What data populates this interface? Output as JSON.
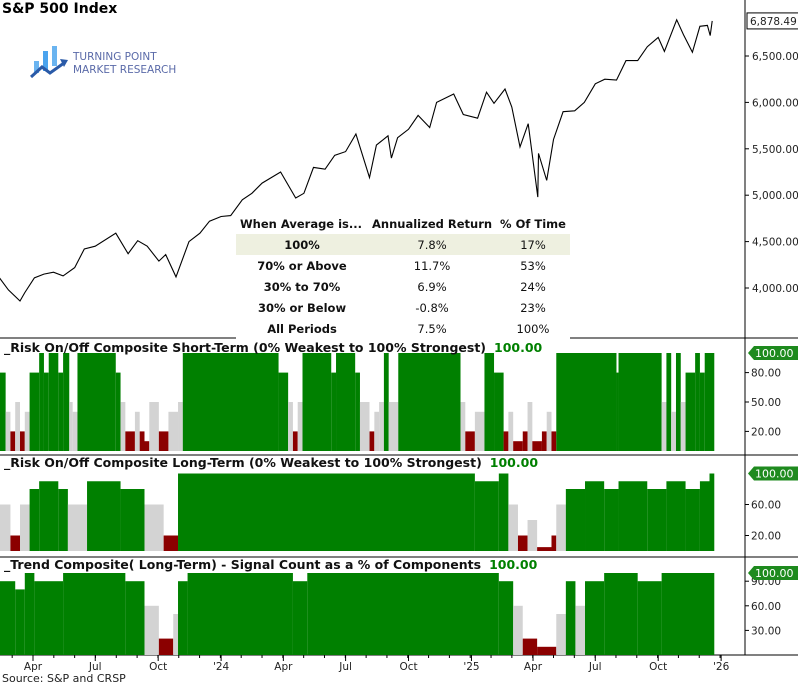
{
  "title": "S&P 500 Index",
  "logo": {
    "line1": "TURNING POINT",
    "line2": "MARKET RESEARCH"
  },
  "source": "Source: S&P and CRSP",
  "colors": {
    "high": "#008000",
    "mid": "#d3d3d3",
    "low": "#8b0000",
    "price": "#000000",
    "badge": "#1e8a1e",
    "table_highlight": "#eef0e0"
  },
  "table": {
    "headers": [
      "When Average is...",
      "Annualized Return",
      "% Of Time"
    ],
    "rows": [
      [
        "100%",
        "7.8%",
        "17%"
      ],
      [
        "70% or Above",
        "11.7%",
        "53%"
      ],
      [
        "30% to 70%",
        "6.9%",
        "24%"
      ],
      [
        "30% or Below",
        "-0.8%",
        "23%"
      ],
      [
        "All Periods",
        "7.5%",
        "100%"
      ]
    ]
  },
  "chart_data": [
    {
      "type": "line",
      "title": "S&P 500 Index",
      "last_value_label": "6,878.49",
      "ylim": [
        3700,
        7000
      ],
      "yticks": [
        "4,000.00",
        "4,500.00",
        "5,000.00",
        "5,500.00",
        "6,000.00",
        "6,500.00"
      ],
      "ytick_values": [
        4000,
        4500,
        5000,
        5500,
        6000,
        6500
      ],
      "points": [
        [
          "2023-02-10",
          4120
        ],
        [
          "2023-02-24",
          3980
        ],
        [
          "2023-03-13",
          3860
        ],
        [
          "2023-03-20",
          3950
        ],
        [
          "2023-04-03",
          4110
        ],
        [
          "2023-04-17",
          4150
        ],
        [
          "2023-05-01",
          4170
        ],
        [
          "2023-05-15",
          4130
        ],
        [
          "2023-06-01",
          4220
        ],
        [
          "2023-06-15",
          4420
        ],
        [
          "2023-07-01",
          4450
        ],
        [
          "2023-07-31",
          4590
        ],
        [
          "2023-08-18",
          4370
        ],
        [
          "2023-09-01",
          4510
        ],
        [
          "2023-09-15",
          4450
        ],
        [
          "2023-10-02",
          4290
        ],
        [
          "2023-10-12",
          4360
        ],
        [
          "2023-10-27",
          4120
        ],
        [
          "2023-11-15",
          4500
        ],
        [
          "2023-12-01",
          4590
        ],
        [
          "2023-12-15",
          4720
        ],
        [
          "2024-01-01",
          4770
        ],
        [
          "2024-01-15",
          4780
        ],
        [
          "2024-02-01",
          4950
        ],
        [
          "2024-02-15",
          5020
        ],
        [
          "2024-03-01",
          5130
        ],
        [
          "2024-03-28",
          5250
        ],
        [
          "2024-04-19",
          4970
        ],
        [
          "2024-05-01",
          5020
        ],
        [
          "2024-05-15",
          5300
        ],
        [
          "2024-06-01",
          5280
        ],
        [
          "2024-06-15",
          5430
        ],
        [
          "2024-07-01",
          5470
        ],
        [
          "2024-07-16",
          5660
        ],
        [
          "2024-08-05",
          5190
        ],
        [
          "2024-08-15",
          5540
        ],
        [
          "2024-09-01",
          5640
        ],
        [
          "2024-09-06",
          5400
        ],
        [
          "2024-09-15",
          5620
        ],
        [
          "2024-10-01",
          5710
        ],
        [
          "2024-10-15",
          5860
        ],
        [
          "2024-11-01",
          5730
        ],
        [
          "2024-11-11",
          6000
        ],
        [
          "2024-12-06",
          6090
        ],
        [
          "2024-12-20",
          5870
        ],
        [
          "2025-01-10",
          5830
        ],
        [
          "2025-01-23",
          6110
        ],
        [
          "2025-02-03",
          5990
        ],
        [
          "2025-02-19",
          6144
        ],
        [
          "2025-03-01",
          5950
        ],
        [
          "2025-03-13",
          5520
        ],
        [
          "2025-03-25",
          5770
        ],
        [
          "2025-04-08",
          4980
        ],
        [
          "2025-04-09",
          5450
        ],
        [
          "2025-04-21",
          5160
        ],
        [
          "2025-05-01",
          5600
        ],
        [
          "2025-05-15",
          5900
        ],
        [
          "2025-06-01",
          5910
        ],
        [
          "2025-06-15",
          6000
        ],
        [
          "2025-07-01",
          6200
        ],
        [
          "2025-07-15",
          6250
        ],
        [
          "2025-08-01",
          6240
        ],
        [
          "2025-08-15",
          6450
        ],
        [
          "2025-09-01",
          6450
        ],
        [
          "2025-09-15",
          6600
        ],
        [
          "2025-10-01",
          6700
        ],
        [
          "2025-10-10",
          6550
        ],
        [
          "2025-10-28",
          6890
        ],
        [
          "2025-11-07",
          6730
        ],
        [
          "2025-11-20",
          6540
        ],
        [
          "2025-12-01",
          6820
        ],
        [
          "2025-12-12",
          6830
        ],
        [
          "2025-12-16",
          6720
        ],
        [
          "2025-12-19",
          6878
        ]
      ]
    },
    {
      "type": "bar",
      "title": "_Risk On/Off Composite Short-Term (0% Weakest to 100% Strongest)",
      "last_value_label": "100.00",
      "ylim": [
        0,
        100
      ],
      "yticks": [
        "20.00",
        "50.00",
        "80.00"
      ],
      "ytick_values": [
        20,
        50,
        80
      ],
      "steps": [
        [
          "2023-02-06",
          80
        ],
        [
          "2023-02-20",
          40
        ],
        [
          "2023-02-27",
          20
        ],
        [
          "2023-03-06",
          50
        ],
        [
          "2023-03-13",
          20
        ],
        [
          "2023-03-20",
          40
        ],
        [
          "2023-03-27",
          80
        ],
        [
          "2023-04-10",
          100
        ],
        [
          "2023-04-17",
          80
        ],
        [
          "2023-04-24",
          100
        ],
        [
          "2023-05-08",
          80
        ],
        [
          "2023-05-15",
          100
        ],
        [
          "2023-05-24",
          50
        ],
        [
          "2023-05-29",
          40
        ],
        [
          "2023-06-05",
          100
        ],
        [
          "2023-07-31",
          80
        ],
        [
          "2023-08-07",
          50
        ],
        [
          "2023-08-14",
          20
        ],
        [
          "2023-08-28",
          40
        ],
        [
          "2023-09-04",
          20
        ],
        [
          "2023-09-11",
          10
        ],
        [
          "2023-09-18",
          50
        ],
        [
          "2023-10-02",
          20
        ],
        [
          "2023-10-16",
          40
        ],
        [
          "2023-10-30",
          50
        ],
        [
          "2023-11-06",
          100
        ],
        [
          "2024-03-25",
          80
        ],
        [
          "2024-04-08",
          50
        ],
        [
          "2024-04-15",
          20
        ],
        [
          "2024-04-22",
          50
        ],
        [
          "2024-04-29",
          100
        ],
        [
          "2024-06-10",
          80
        ],
        [
          "2024-06-17",
          100
        ],
        [
          "2024-07-15",
          80
        ],
        [
          "2024-07-22",
          50
        ],
        [
          "2024-08-05",
          20
        ],
        [
          "2024-08-12",
          40
        ],
        [
          "2024-08-19",
          50
        ],
        [
          "2024-08-26",
          100
        ],
        [
          "2024-09-02",
          50
        ],
        [
          "2024-09-16",
          100
        ],
        [
          "2024-12-16",
          50
        ],
        [
          "2024-12-23",
          20
        ],
        [
          "2025-01-06",
          40
        ],
        [
          "2025-01-20",
          100
        ],
        [
          "2025-02-03",
          80
        ],
        [
          "2025-02-17",
          20
        ],
        [
          "2025-02-24",
          40
        ],
        [
          "2025-03-03",
          10
        ],
        [
          "2025-03-17",
          20
        ],
        [
          "2025-03-24",
          50
        ],
        [
          "2025-03-31",
          10
        ],
        [
          "2025-04-14",
          20
        ],
        [
          "2025-04-21",
          40
        ],
        [
          "2025-04-28",
          20
        ],
        [
          "2025-05-05",
          100
        ],
        [
          "2025-08-01",
          80
        ],
        [
          "2025-08-04",
          100
        ],
        [
          "2025-10-06",
          50
        ],
        [
          "2025-10-13",
          100
        ],
        [
          "2025-10-20",
          40
        ],
        [
          "2025-10-27",
          100
        ],
        [
          "2025-11-03",
          50
        ],
        [
          "2025-11-10",
          80
        ],
        [
          "2025-11-24",
          100
        ],
        [
          "2025-12-01",
          80
        ],
        [
          "2025-12-08",
          100
        ],
        [
          "2025-12-22",
          100
        ]
      ]
    },
    {
      "type": "bar",
      "title": "_Risk On/Off Composite Long-Term (0% Weakest to 100% Strongest)",
      "last_value_label": "100.00",
      "ylim": [
        0,
        100
      ],
      "yticks": [
        "20.00",
        "60.00"
      ],
      "ytick_values": [
        20,
        60
      ],
      "steps": [
        [
          "2023-02-06",
          60
        ],
        [
          "2023-02-27",
          20
        ],
        [
          "2023-03-13",
          60
        ],
        [
          "2023-03-27",
          80
        ],
        [
          "2023-04-10",
          90
        ],
        [
          "2023-05-08",
          80
        ],
        [
          "2023-05-22",
          60
        ],
        [
          "2023-06-19",
          90
        ],
        [
          "2023-08-07",
          80
        ],
        [
          "2023-09-11",
          60
        ],
        [
          "2023-10-09",
          20
        ],
        [
          "2023-10-30",
          100
        ],
        [
          "2025-01-06",
          90
        ],
        [
          "2025-02-10",
          100
        ],
        [
          "2025-02-24",
          60
        ],
        [
          "2025-03-10",
          20
        ],
        [
          "2025-03-24",
          40
        ],
        [
          "2025-04-07",
          5
        ],
        [
          "2025-04-28",
          20
        ],
        [
          "2025-05-05",
          60
        ],
        [
          "2025-05-19",
          80
        ],
        [
          "2025-06-16",
          90
        ],
        [
          "2025-07-14",
          80
        ],
        [
          "2025-08-04",
          90
        ],
        [
          "2025-09-15",
          80
        ],
        [
          "2025-10-13",
          90
        ],
        [
          "2025-11-10",
          80
        ],
        [
          "2025-12-01",
          90
        ],
        [
          "2025-12-15",
          100
        ],
        [
          "2025-12-22",
          100
        ]
      ]
    },
    {
      "type": "bar",
      "title": "_Trend Composite( Long-Term) - Signal Count as a % of Components",
      "last_value_label": "100.00",
      "ylim": [
        0,
        100
      ],
      "yticks": [
        "30.00",
        "60.00",
        "90.00"
      ],
      "ytick_values": [
        30,
        60,
        90
      ],
      "steps": [
        [
          "2023-02-06",
          90
        ],
        [
          "2023-03-06",
          80
        ],
        [
          "2023-03-20",
          100
        ],
        [
          "2023-04-03",
          90
        ],
        [
          "2023-05-15",
          100
        ],
        [
          "2023-08-14",
          90
        ],
        [
          "2023-09-11",
          60
        ],
        [
          "2023-10-02",
          20
        ],
        [
          "2023-10-23",
          50
        ],
        [
          "2023-10-30",
          90
        ],
        [
          "2023-11-13",
          100
        ],
        [
          "2024-04-15",
          90
        ],
        [
          "2024-05-06",
          100
        ],
        [
          "2025-02-10",
          90
        ],
        [
          "2025-03-03",
          60
        ],
        [
          "2025-03-17",
          20
        ],
        [
          "2025-04-07",
          10
        ],
        [
          "2025-05-05",
          50
        ],
        [
          "2025-05-19",
          90
        ],
        [
          "2025-06-02",
          60
        ],
        [
          "2025-06-16",
          90
        ],
        [
          "2025-07-14",
          100
        ],
        [
          "2025-09-01",
          90
        ],
        [
          "2025-10-06",
          100
        ],
        [
          "2025-12-22",
          100
        ]
      ]
    }
  ],
  "xaxis": {
    "ticks": [
      [
        "2023-04-01",
        "Apr"
      ],
      [
        "2023-07-01",
        "Jul"
      ],
      [
        "2023-10-01",
        "Oct"
      ],
      [
        "2024-01-01",
        "'24"
      ],
      [
        "2024-04-01",
        "Apr"
      ],
      [
        "2024-07-01",
        "Jul"
      ],
      [
        "2024-10-01",
        "Oct"
      ],
      [
        "2025-01-01",
        "'25"
      ],
      [
        "2025-04-01",
        "Apr"
      ],
      [
        "2025-07-01",
        "Jul"
      ],
      [
        "2025-10-01",
        "Oct"
      ],
      [
        "2026-01-01",
        "'26"
      ]
    ]
  }
}
